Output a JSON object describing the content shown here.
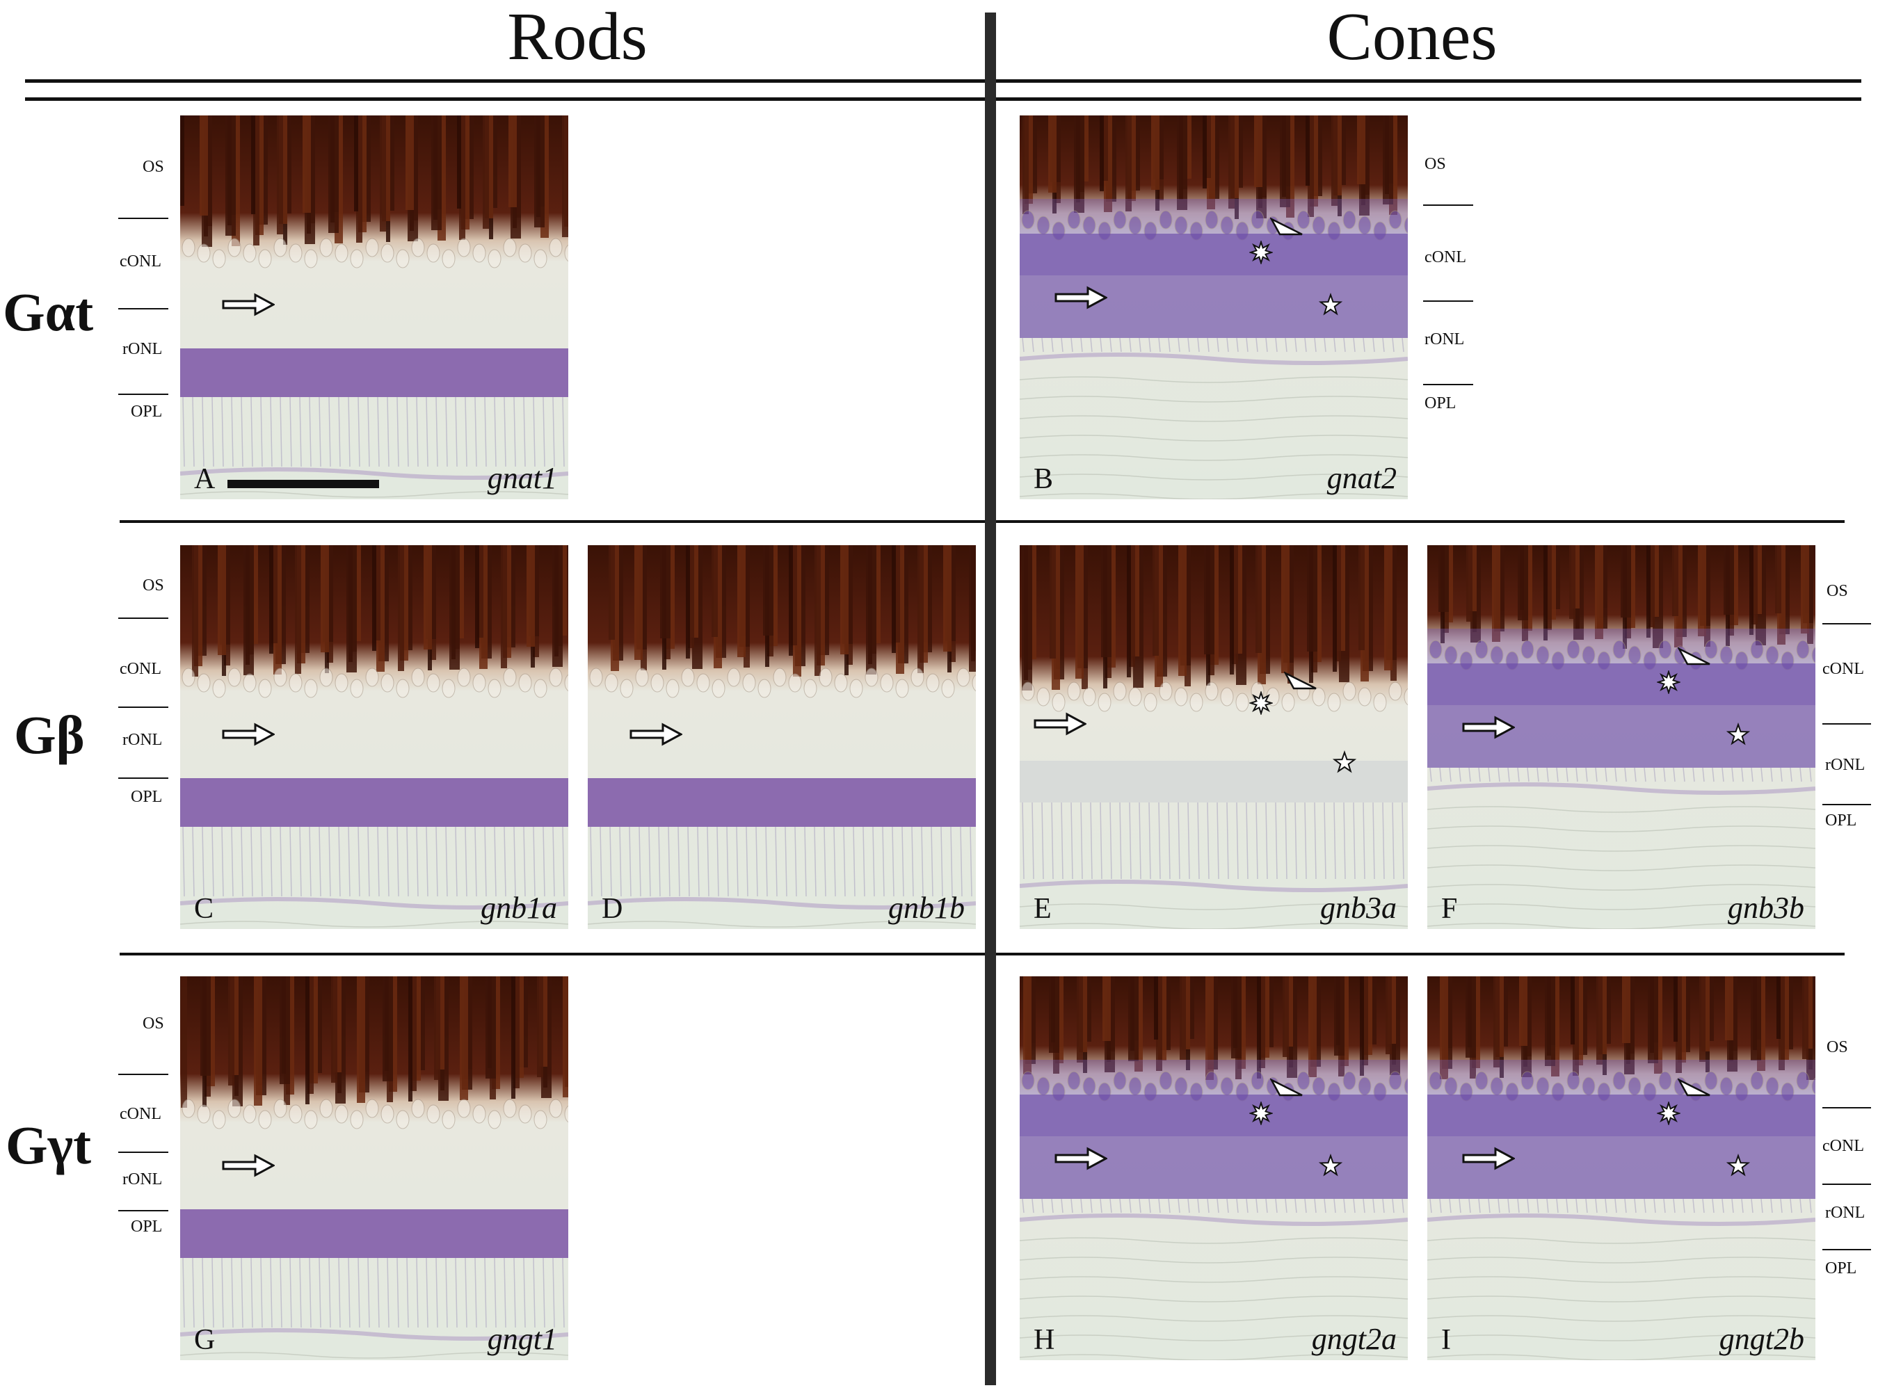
{
  "columns": {
    "rods": "Rods",
    "cones": "Cones"
  },
  "rows": [
    {
      "label": "Gαt"
    },
    {
      "label": "Gβ"
    },
    {
      "label": "Gγt"
    }
  ],
  "layers": {
    "os": "OS",
    "conl": "cONL",
    "ronl": "rONL",
    "opl": "OPL"
  },
  "panels": [
    {
      "letter": "A",
      "gene": "gnat1",
      "type": "rod"
    },
    {
      "letter": "B",
      "gene": "gnat2",
      "type": "cone"
    },
    {
      "letter": "C",
      "gene": "gnb1a",
      "type": "rod"
    },
    {
      "letter": "D",
      "gene": "gnb1b",
      "type": "rod"
    },
    {
      "letter": "E",
      "gene": "gnb3a",
      "type": "cone-weak"
    },
    {
      "letter": "F",
      "gene": "gnb3b",
      "type": "cone"
    },
    {
      "letter": "G",
      "gene": "gngt1",
      "type": "rod"
    },
    {
      "letter": "H",
      "gene": "gngt2a",
      "type": "cone"
    },
    {
      "letter": "I",
      "gene": "gngt2b",
      "type": "cone"
    }
  ],
  "colors": {
    "pigment": "#3d1408",
    "stain": "#6a4aa8",
    "tissue": "#e4ebe2"
  },
  "icons": {
    "arrow": "arrow-icon",
    "arrowhead": "arrowhead-icon",
    "starburst": "starburst-icon",
    "star": "star-icon"
  }
}
